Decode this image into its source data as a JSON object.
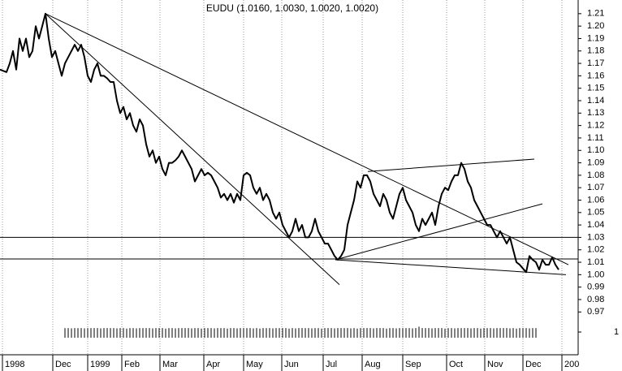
{
  "chart_data": {
    "type": "line",
    "title": "EUDU (1.0160, 1.0030, 1.0020, 1.0020)",
    "color": "#000000",
    "grid": true,
    "xlim": [
      0,
      712
    ],
    "ylim": [
      0.963,
      1.221
    ],
    "xticks": [
      {
        "value": 3,
        "label": "1998"
      },
      {
        "value": 65,
        "label": "Dec"
      },
      {
        "value": 108,
        "label": "1999"
      },
      {
        "value": 150,
        "label": "Feb"
      },
      {
        "value": 197,
        "label": "Mar"
      },
      {
        "value": 251,
        "label": "Apr"
      },
      {
        "value": 300,
        "label": "May"
      },
      {
        "value": 347,
        "label": "Jun"
      },
      {
        "value": 398,
        "label": "Jul"
      },
      {
        "value": 446,
        "label": "Aug"
      },
      {
        "value": 496,
        "label": "Sep"
      },
      {
        "value": 550,
        "label": "Oct"
      },
      {
        "value": 597,
        "label": "Nov"
      },
      {
        "value": 644,
        "label": "Dec"
      },
      {
        "value": 692,
        "label": "200"
      }
    ],
    "yticks": [
      1.21,
      {
        "value": 1.2,
        "label": "1.20"
      },
      1.19,
      1.18,
      1.17,
      1.16,
      1.15,
      1.14,
      1.13,
      1.12,
      1.11,
      {
        "value": 1.1,
        "label": "1.10"
      },
      1.09,
      1.08,
      1.07,
      1.06,
      1.05,
      1.04,
      1.03,
      1.02,
      1.01,
      {
        "value": 1,
        "label": "1.00"
      },
      0.99,
      0.98,
      0.97
    ],
    "x": [
      0,
      4,
      8,
      12,
      16,
      20,
      24,
      28,
      32,
      36,
      40,
      44,
      48,
      52,
      56,
      60,
      64,
      68,
      72,
      76,
      80,
      84,
      88,
      92,
      96,
      100,
      104,
      108,
      112,
      116,
      120,
      124,
      128,
      132,
      136,
      140,
      144,
      148,
      152,
      156,
      160,
      164,
      168,
      172,
      176,
      180,
      184,
      188,
      192,
      196,
      200,
      204,
      208,
      212,
      216,
      220,
      224,
      228,
      232,
      236,
      240,
      244,
      248,
      252,
      256,
      260,
      264,
      268,
      272,
      276,
      280,
      284,
      288,
      292,
      296,
      300,
      304,
      308,
      312,
      316,
      320,
      324,
      328,
      332,
      336,
      340,
      344,
      348,
      352,
      356,
      360,
      364,
      368,
      372,
      376,
      380,
      384,
      388,
      392,
      396,
      400,
      404,
      408,
      412,
      416,
      420,
      424,
      428,
      432,
      436,
      440,
      444,
      448,
      452,
      456,
      460,
      464,
      468,
      472,
      476,
      480,
      484,
      488,
      492,
      496,
      500,
      504,
      508,
      512,
      516,
      520,
      524,
      528,
      532,
      536,
      540,
      544,
      548,
      552,
      556,
      560,
      564,
      568,
      572,
      576,
      580,
      584,
      588,
      592,
      596,
      600,
      604,
      608,
      612,
      616,
      620,
      624,
      628,
      632,
      636,
      640,
      644,
      648,
      652,
      656,
      660,
      664,
      668,
      672,
      676,
      680,
      684,
      688
    ],
    "values": [
      1.165,
      1.164,
      1.163,
      1.17,
      1.18,
      1.165,
      1.19,
      1.18,
      1.19,
      1.175,
      1.18,
      1.2,
      1.19,
      1.2,
      1.21,
      1.19,
      1.175,
      1.18,
      1.17,
      1.16,
      1.17,
      1.175,
      1.18,
      1.185,
      1.18,
      1.185,
      1.175,
      1.16,
      1.155,
      1.165,
      1.17,
      1.16,
      1.16,
      1.158,
      1.155,
      1.155,
      1.14,
      1.13,
      1.135,
      1.125,
      1.13,
      1.12,
      1.115,
      1.125,
      1.12,
      1.105,
      1.095,
      1.1,
      1.09,
      1.095,
      1.085,
      1.08,
      1.09,
      1.09,
      1.092,
      1.095,
      1.1,
      1.095,
      1.09,
      1.085,
      1.075,
      1.08,
      1.085,
      1.08,
      1.082,
      1.08,
      1.075,
      1.07,
      1.062,
      1.065,
      1.06,
      1.065,
      1.058,
      1.065,
      1.06,
      1.08,
      1.082,
      1.08,
      1.07,
      1.065,
      1.07,
      1.06,
      1.065,
      1.06,
      1.05,
      1.045,
      1.05,
      1.04,
      1.035,
      1.03,
      1.035,
      1.045,
      1.035,
      1.04,
      1.03,
      1.03,
      1.035,
      1.045,
      1.035,
      1.03,
      1.025,
      1.025,
      1.02,
      1.015,
      1.012,
      1.015,
      1.02,
      1.04,
      1.05,
      1.06,
      1.075,
      1.07,
      1.08,
      1.08,
      1.075,
      1.065,
      1.06,
      1.055,
      1.065,
      1.06,
      1.05,
      1.045,
      1.055,
      1.065,
      1.07,
      1.06,
      1.055,
      1.05,
      1.04,
      1.035,
      1.045,
      1.04,
      1.045,
      1.05,
      1.04,
      1.055,
      1.065,
      1.07,
      1.068,
      1.075,
      1.08,
      1.08,
      1.09,
      1.085,
      1.075,
      1.07,
      1.06,
      1.055,
      1.05,
      1.045,
      1.04,
      1.04,
      1.035,
      1.03,
      1.035,
      1.03,
      1.025,
      1.03,
      1.02,
      1.01,
      1.008,
      1.005,
      1.002,
      1.015,
      1.012,
      1.01,
      1.004,
      1.012,
      1.008,
      1.008,
      1.014,
      1.008,
      1.004
    ],
    "trendlines": [
      [
        56,
        1.21,
        700,
        1.008
      ],
      [
        56,
        1.21,
        418,
        0.992
      ],
      [
        453,
        1.083,
        658,
        1.093
      ],
      [
        413,
        1.012,
        668,
        1.057
      ],
      [
        413,
        1.012,
        697,
        1.0
      ]
    ],
    "hlines": [
      1.03,
      1.0126
    ],
    "volume": {
      "ylim": [
        0,
        2
      ],
      "yticks": [
        1
      ],
      "values": [
        null,
        null,
        null,
        null,
        null,
        null,
        null,
        null,
        null,
        null,
        null,
        null,
        null,
        null,
        null,
        null,
        null,
        null,
        null,
        null,
        1.7,
        1.7,
        1.65,
        1.7,
        1.7,
        1.7,
        1.65,
        1.7,
        1.7,
        1.7,
        1.7,
        1.65,
        1.7,
        1.7,
        1.7,
        1.7,
        1.65,
        1.7,
        1.7,
        1.6,
        1.7,
        1.7,
        1.65,
        1.7,
        1.7,
        1.7,
        1.7,
        1.65,
        1.7,
        1.7,
        1.7,
        1.6,
        1.7,
        1.7,
        1.65,
        1.7,
        1.7,
        1.7,
        1.7,
        1.65,
        1.7,
        1.7,
        1.6,
        1.7,
        1.7,
        1.7,
        1.65,
        1.7,
        1.7,
        1.7,
        1.6,
        1.7,
        1.7,
        1.65,
        1.7,
        1.7,
        1.7,
        1.7,
        1.65,
        1.7,
        1.6,
        1.7,
        1.7,
        1.7,
        1.65,
        1.7,
        1.7,
        1.7,
        1.7,
        1.6,
        1.7,
        1.65,
        1.7,
        1.7,
        1.7,
        1.7,
        1.65,
        1.7,
        1.7,
        1.6,
        1.7,
        1.7,
        1.7,
        1.65,
        1.7,
        1.7,
        1.7,
        1.7,
        1.65,
        1.7,
        1.6,
        1.7,
        1.7,
        1.7,
        1.7,
        1.65,
        1.7,
        1.7,
        1.7,
        1.6,
        1.7,
        1.7,
        1.65,
        1.7,
        1.7,
        1.7,
        1.7,
        1.65,
        1.7,
        1.95,
        1.7,
        1.7,
        1.7,
        1.65,
        1.7,
        1.7,
        1.7,
        1.6,
        1.7,
        1.7,
        1.65,
        1.7,
        1.7,
        1.7,
        1.7,
        1.65,
        1.7,
        1.7,
        1.6,
        1.7,
        1.7,
        1.7,
        1.65,
        1.7,
        1.7,
        1.7,
        1.7,
        1.65,
        1.7,
        1.6,
        1.7,
        1.7,
        1.7,
        1.65,
        1.7,
        1.7
      ]
    }
  }
}
